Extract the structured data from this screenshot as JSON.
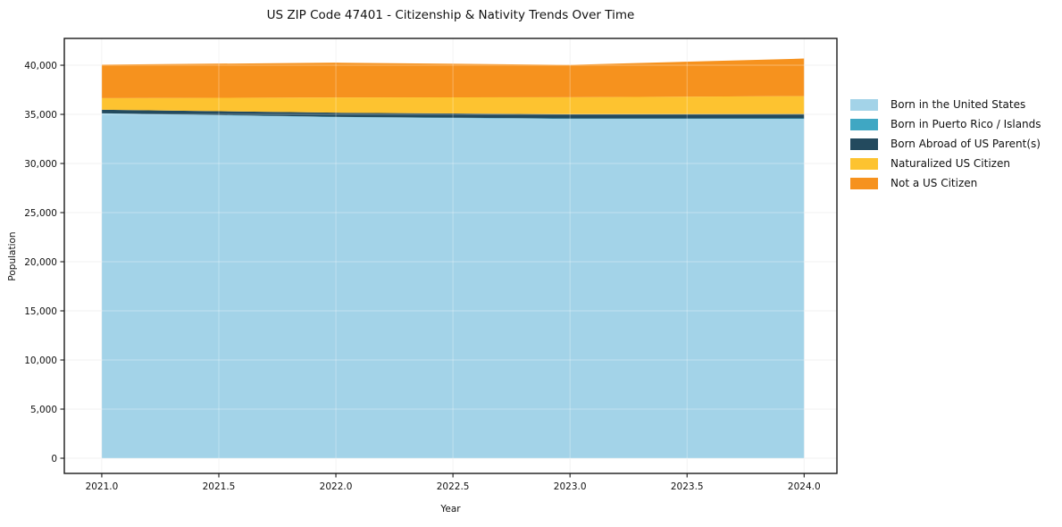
{
  "chart_data": {
    "type": "area",
    "stacked": true,
    "title": "US ZIP Code 47401 - Citizenship & Nativity Trends Over Time",
    "xlabel": "Year",
    "ylabel": "Population",
    "x": [
      2021,
      2022,
      2023,
      2024
    ],
    "series": [
      {
        "name": "Born in the United States",
        "color": "#a3d3e8",
        "values": [
          35090,
          34720,
          34540,
          34540
        ]
      },
      {
        "name": "Born in Puerto Rico / Islands",
        "color": "#3fa7c3",
        "values": [
          20,
          30,
          40,
          50
        ]
      },
      {
        "name": "Born Abroad of US Parent(s)",
        "color": "#234a5e",
        "values": [
          360,
          420,
          430,
          450
        ]
      },
      {
        "name": "Naturalized US Citizen",
        "color": "#fdc330",
        "values": [
          1180,
          1545,
          1730,
          1820
        ]
      },
      {
        "name": "Not a US Citizen",
        "color": "#f6921e",
        "values": [
          3410,
          3545,
          3300,
          3820
        ]
      }
    ],
    "xlim": [
      2020.84,
      2024.14
    ],
    "ylim": [
      -1545,
      42730
    ],
    "xticks": {
      "values": [
        2021.0,
        2021.5,
        2022.0,
        2022.5,
        2023.0,
        2023.5,
        2024.0
      ],
      "labels": [
        "2021.0",
        "2021.5",
        "2022.0",
        "2022.5",
        "2023.0",
        "2023.5",
        "2024.0"
      ]
    },
    "yticks": {
      "values": [
        0,
        5000,
        10000,
        15000,
        20000,
        25000,
        30000,
        35000,
        40000
      ],
      "labels": [
        "0",
        "5,000",
        "10,000",
        "15,000",
        "20,000",
        "25,000",
        "30,000",
        "35,000",
        "40,000"
      ]
    },
    "grid": true,
    "legend_position": "right-outside",
    "colors": {
      "spine": "#1a1a1a",
      "gridline": "#e9e9e9",
      "tick_text": "#111111"
    }
  }
}
